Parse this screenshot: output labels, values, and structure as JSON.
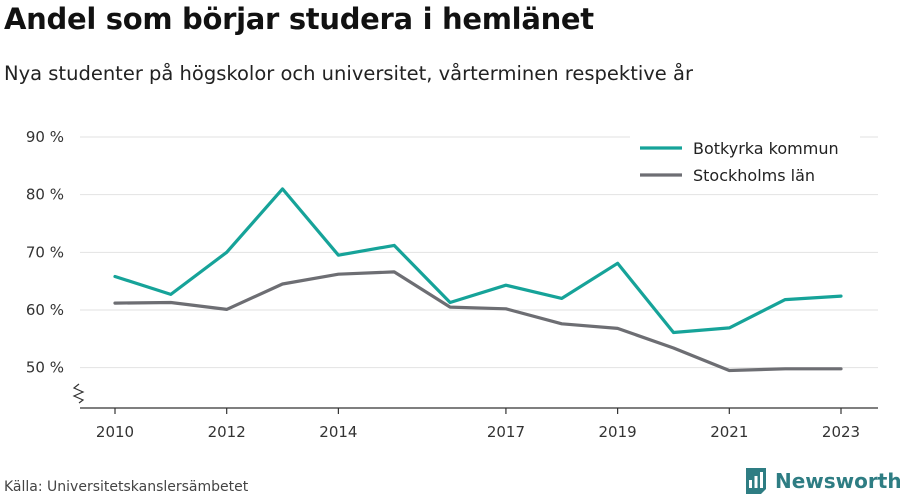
{
  "header": {
    "title": "Andel som börjar studera i hemlänet",
    "subtitle": "Nya studenter på högskolor och universitet, vårterminen respektive år"
  },
  "footer": {
    "source": "Källa: Universitetskanslersämbetet",
    "brand_name": "Newsworthy"
  },
  "colors": {
    "botkyrka": "#16a399",
    "stockholm": "#6d6e73",
    "grid": "#e2e2e2",
    "axis": "#333333",
    "brand": "#2e7d83"
  },
  "chart_data": {
    "type": "line",
    "x": [
      2010,
      2011,
      2012,
      2013,
      2014,
      2015,
      2016,
      2017,
      2018,
      2019,
      2020,
      2021,
      2022,
      2023
    ],
    "xticks": [
      2010,
      2012,
      2014,
      2017,
      2019,
      2021,
      2023
    ],
    "xtick_labels": [
      "2010",
      "2012",
      "2014",
      "2017",
      "2019",
      "2021",
      "2023"
    ],
    "yticks": [
      50,
      60,
      70,
      80,
      90
    ],
    "ytick_labels": [
      "50 %",
      "60 %",
      "70 %",
      "80 %",
      "90 %"
    ],
    "ylim": [
      43,
      90
    ],
    "axis_break": true,
    "grid": true,
    "legend_position": "top-right",
    "series": [
      {
        "name": "Botkyrka kommun",
        "color": "#16a399",
        "values": [
          65.8,
          62.7,
          70.0,
          81.0,
          69.5,
          71.2,
          61.3,
          64.3,
          62.0,
          68.1,
          56.1,
          56.9,
          61.8,
          62.4
        ]
      },
      {
        "name": "Stockholms län",
        "color": "#6d6e73",
        "values": [
          61.2,
          61.3,
          60.1,
          64.5,
          66.2,
          66.6,
          60.5,
          60.2,
          57.6,
          56.8,
          53.4,
          49.5,
          49.8,
          49.8
        ]
      }
    ]
  }
}
